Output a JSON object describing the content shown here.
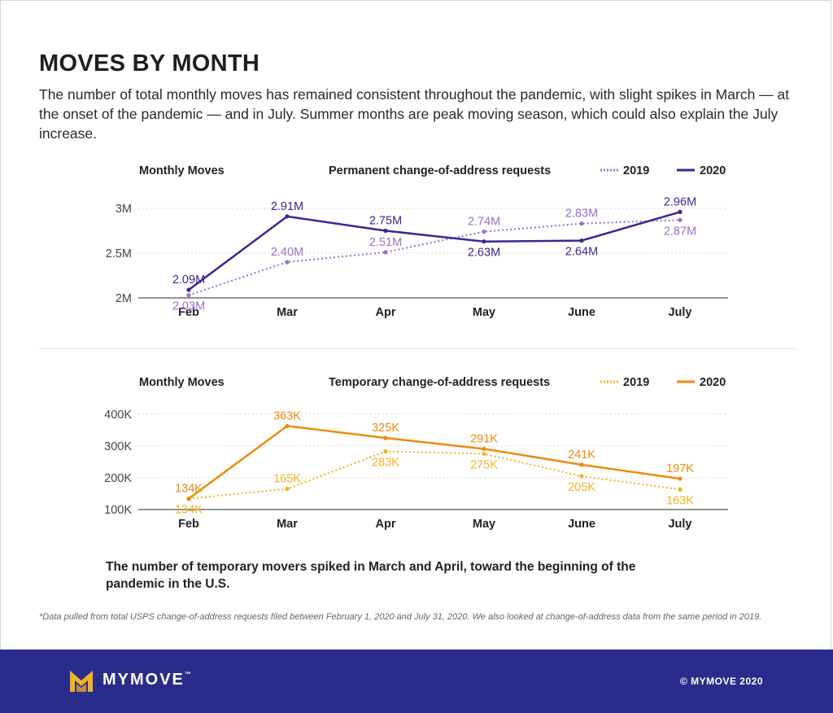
{
  "title": "MOVES BY MONTH",
  "subtitle": "The number of total monthly moves has remained consistent throughout the pandemic, with slight spikes in March — at the onset of the pandemic — and in July. Summer months are peak moving season, which could also explain the July increase.",
  "colors": {
    "purple_2019": "#9a6fd0",
    "purple_2020": "#3d2595",
    "orange_2019": "#f2b21e",
    "orange_2020": "#f08a0e",
    "footer_bg": "#2a2c8c",
    "logo_gold": "#f0b323"
  },
  "chart_data": [
    {
      "type": "line",
      "left_title": "Monthly Moves",
      "title": "Permanent change-of-address requests",
      "categories": [
        "Feb",
        "Mar",
        "Apr",
        "May",
        "June",
        "July"
      ],
      "yticks": [
        "2M",
        "2.5M",
        "3M"
      ],
      "ytick_values": [
        2,
        2.5,
        3
      ],
      "ylim": [
        2,
        3.1
      ],
      "grid": true,
      "legend_position": "top-right",
      "series": [
        {
          "name": "2019",
          "style": "dotted",
          "color": "#9a6fd0",
          "values": [
            2.03,
            2.4,
            2.51,
            2.74,
            2.83,
            2.87
          ],
          "labels": [
            "2.03M",
            "2.40M",
            "2.51M",
            "2.74M",
            "2.83M",
            "2.87M"
          ],
          "label_pos": [
            "below",
            "above",
            "above",
            "above",
            "above",
            "below"
          ]
        },
        {
          "name": "2020",
          "style": "solid",
          "color": "#3d2595",
          "values": [
            2.09,
            2.91,
            2.75,
            2.63,
            2.64,
            2.96
          ],
          "labels": [
            "2.09M",
            "2.91M",
            "2.75M",
            "2.63M",
            "2.64M",
            "2.96M"
          ],
          "label_pos": [
            "above",
            "above",
            "above",
            "below",
            "below",
            "above"
          ]
        }
      ]
    },
    {
      "type": "line",
      "left_title": "Monthly Moves",
      "title": "Temporary change-of-address requests",
      "categories": [
        "Feb",
        "Mar",
        "Apr",
        "May",
        "June",
        "July"
      ],
      "yticks": [
        "100K",
        "200K",
        "300K",
        "400K"
      ],
      "ytick_values": [
        100,
        200,
        300,
        400
      ],
      "ylim": [
        100,
        410
      ],
      "grid": true,
      "legend_position": "top-right",
      "series": [
        {
          "name": "2019",
          "style": "dotted",
          "color": "#f2b21e",
          "values": [
            134,
            165,
            283,
            275,
            205,
            163
          ],
          "labels": [
            "134K",
            "165K",
            "283K",
            "275K",
            "205K",
            "163K"
          ],
          "label_pos": [
            "below",
            "above",
            "below",
            "below",
            "below",
            "below"
          ]
        },
        {
          "name": "2020",
          "style": "solid",
          "color": "#f08a0e",
          "values": [
            134,
            363,
            325,
            291,
            241,
            197
          ],
          "labels": [
            "134K",
            "363K",
            "325K",
            "291K",
            "241K",
            "197K"
          ],
          "label_pos": [
            "above",
            "above",
            "above",
            "above",
            "above",
            "above"
          ]
        }
      ]
    }
  ],
  "note": "The number of temporary movers spiked in March and April, toward the beginning of the pandemic in the U.S.",
  "footnote": "*Data pulled from total USPS change-of-address requests filed between February 1, 2020 and July 31, 2020. We also looked at change-of-address data from the same period in 2019.",
  "footer": {
    "brand": "MYMOVE",
    "tm": "™",
    "copyright": "© MYMOVE 2020",
    "logo_icon": "mymove-m-logo-icon"
  }
}
